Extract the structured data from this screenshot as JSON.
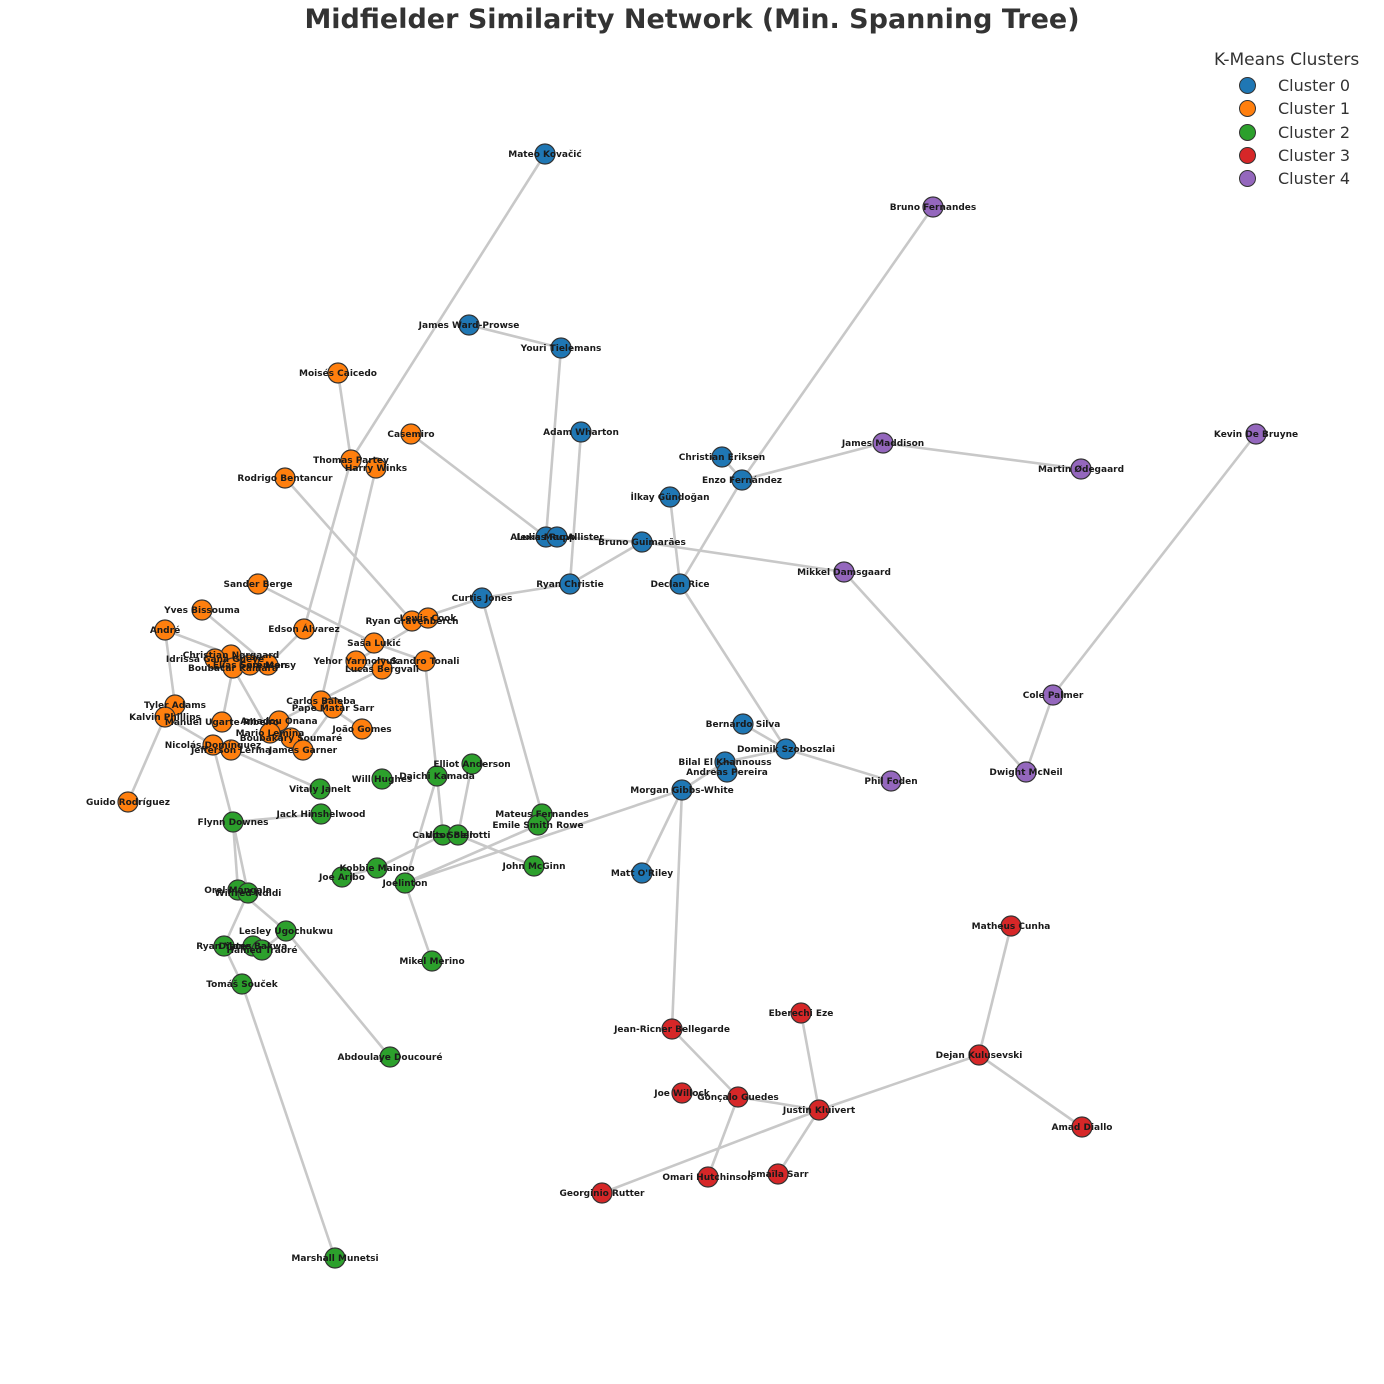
{
  "title": "Midfielder Similarity Network (Min. Spanning Tree)",
  "legend": {
    "title": "K-Means Clusters",
    "items": [
      {
        "label": "Cluster 0",
        "color": "#1f77b4"
      },
      {
        "label": "Cluster 1",
        "color": "#ff7f0e"
      },
      {
        "label": "Cluster 2",
        "color": "#2ca02c"
      },
      {
        "label": "Cluster 3",
        "color": "#d62728"
      },
      {
        "label": "Cluster 4",
        "color": "#9467bd"
      }
    ]
  },
  "colors": {
    "edge": "#c8c8c8",
    "node_outline": "#333333"
  },
  "nodes": [
    {
      "name": "Mateo Kovačić",
      "cluster": 0
    },
    {
      "name": "James Ward-Prowse",
      "cluster": 0
    },
    {
      "name": "Youri Tielemans",
      "cluster": 0
    },
    {
      "name": "Adam Wharton",
      "cluster": 0
    },
    {
      "name": "Christian Eriksen",
      "cluster": 0
    },
    {
      "name": "Enzo Fernández",
      "cluster": 0
    },
    {
      "name": "İlkay Gündoğan",
      "cluster": 0
    },
    {
      "name": "Lukas Rupp",
      "cluster": 0
    },
    {
      "name": "Alexis Mac Allister",
      "cluster": 0
    },
    {
      "name": "Bruno Guimarães",
      "cluster": 0
    },
    {
      "name": "Ryan Christie",
      "cluster": 0
    },
    {
      "name": "Declan Rice",
      "cluster": 0
    },
    {
      "name": "Curtis Jones",
      "cluster": 0
    },
    {
      "name": "Bernardo Silva",
      "cluster": 0
    },
    {
      "name": "Dominik Szoboszlai",
      "cluster": 0
    },
    {
      "name": "Bilal El Khannouss",
      "cluster": 0
    },
    {
      "name": "Andreas Pereira",
      "cluster": 0
    },
    {
      "name": "Morgan Gibbs-White",
      "cluster": 0
    },
    {
      "name": "Matt O'Riley",
      "cluster": 0
    },
    {
      "name": "Moisés Caicedo",
      "cluster": 1
    },
    {
      "name": "Casemiro",
      "cluster": 1
    },
    {
      "name": "Thomas Partey",
      "cluster": 1
    },
    {
      "name": "Harry Winks",
      "cluster": 1
    },
    {
      "name": "Rodrigo Bentancur",
      "cluster": 1
    },
    {
      "name": "Sander Berge",
      "cluster": 1
    },
    {
      "name": "Yves Bissouma",
      "cluster": 1
    },
    {
      "name": "André",
      "cluster": 1
    },
    {
      "name": "Edson Álvarez",
      "cluster": 1
    },
    {
      "name": "Ryan Gravenberch",
      "cluster": 1
    },
    {
      "name": "Lewis Cook",
      "cluster": 1
    },
    {
      "name": "Saša Lukić",
      "cluster": 1
    },
    {
      "name": "Christian Nørgaard",
      "cluster": 1
    },
    {
      "name": "Idrissa Gana Gueye",
      "cluster": 1
    },
    {
      "name": "Boubacar Kamara",
      "cluster": 1
    },
    {
      "name": "Elias Sørensen",
      "cluster": 1
    },
    {
      "name": "Sam Morsy",
      "cluster": 1
    },
    {
      "name": "Yehor Yarmolyuk",
      "cluster": 1
    },
    {
      "name": "Lucas Bergvall",
      "cluster": 1
    },
    {
      "name": "Sandro Tonali",
      "cluster": 1
    },
    {
      "name": "Tyler Adams",
      "cluster": 1
    },
    {
      "name": "Kalvin Phillips",
      "cluster": 1
    },
    {
      "name": "Carlos Baleba",
      "cluster": 1
    },
    {
      "name": "Pape Matar Sarr",
      "cluster": 1
    },
    {
      "name": "Manuel Ugarte Ribeiro",
      "cluster": 1
    },
    {
      "name": "Amadou Onana",
      "cluster": 1
    },
    {
      "name": "Mario Lemina",
      "cluster": 1
    },
    {
      "name": "Boubakary Soumaré",
      "cluster": 1
    },
    {
      "name": "João Gomes",
      "cluster": 1
    },
    {
      "name": "Nicolás Domínguez",
      "cluster": 1
    },
    {
      "name": "Jefferson Lerma",
      "cluster": 1
    },
    {
      "name": "James Garner",
      "cluster": 1
    },
    {
      "name": "Guido Rodríguez",
      "cluster": 1
    },
    {
      "name": "Elliot Anderson",
      "cluster": 2
    },
    {
      "name": "Will Hughes",
      "cluster": 2
    },
    {
      "name": "Daichi Kamada",
      "cluster": 2
    },
    {
      "name": "Vitaly Janelt",
      "cluster": 2
    },
    {
      "name": "Jack Hinshelwood",
      "cluster": 2
    },
    {
      "name": "Flynn Downes",
      "cluster": 2
    },
    {
      "name": "Mateus Fernandes",
      "cluster": 2
    },
    {
      "name": "Emile Smith Rowe",
      "cluster": 2
    },
    {
      "name": "Carlos Soler",
      "cluster": 2
    },
    {
      "name": "Vitor Bellotti",
      "cluster": 2
    },
    {
      "name": "Kobbie Mainoo",
      "cluster": 2
    },
    {
      "name": "John McGinn",
      "cluster": 2
    },
    {
      "name": "Joe Aribo",
      "cluster": 2
    },
    {
      "name": "Joelinton",
      "cluster": 2
    },
    {
      "name": "Orel Mangala",
      "cluster": 2
    },
    {
      "name": "Wilfred Ndidi",
      "cluster": 2
    },
    {
      "name": "Lesley Ugochukwu",
      "cluster": 2
    },
    {
      "name": "Ryan Yates",
      "cluster": 2
    },
    {
      "name": "Dilane Bakwa",
      "cluster": 2
    },
    {
      "name": "Hamed Traoré",
      "cluster": 2
    },
    {
      "name": "Mikel Merino",
      "cluster": 2
    },
    {
      "name": "Tomáš Souček",
      "cluster": 2
    },
    {
      "name": "Abdoulaye Doucouré",
      "cluster": 2
    },
    {
      "name": "Marshall Munetsi",
      "cluster": 2
    },
    {
      "name": "Matheus Cunha",
      "cluster": 3
    },
    {
      "name": "Eberechi Eze",
      "cluster": 3
    },
    {
      "name": "Jean-Ricner Bellegarde",
      "cluster": 3
    },
    {
      "name": "Dejan Kulusevski",
      "cluster": 3
    },
    {
      "name": "Joe Willock",
      "cluster": 3
    },
    {
      "name": "Gonçalo Guedes",
      "cluster": 3
    },
    {
      "name": "Justin Kluivert",
      "cluster": 3
    },
    {
      "name": "Amad Diallo",
      "cluster": 3
    },
    {
      "name": "Omari Hutchinson",
      "cluster": 3
    },
    {
      "name": "Ismaïla Sarr",
      "cluster": 3
    },
    {
      "name": "Georginio Rutter",
      "cluster": 3
    },
    {
      "name": "Bruno Fernandes",
      "cluster": 4
    },
    {
      "name": "James Maddison",
      "cluster": 4
    },
    {
      "name": "Martin Ødegaard",
      "cluster": 4
    },
    {
      "name": "Kevin De Bruyne",
      "cluster": 4
    },
    {
      "name": "Mikkel Damsgaard",
      "cluster": 4
    },
    {
      "name": "Cole Palmer",
      "cluster": 4
    },
    {
      "name": "Dwight McNeil",
      "cluster": 4
    },
    {
      "name": "Phil Foden",
      "cluster": 4
    }
  ],
  "edges": [
    [
      "Mateo Kovačić",
      "Thomas Partey"
    ],
    [
      "James Ward-Prowse",
      "Youri Tielemans"
    ],
    [
      "Youri Tielemans",
      "Lukas Rupp"
    ],
    [
      "Adam Wharton",
      "Ryan Christie"
    ],
    [
      "Alexis Mac Allister",
      "Bruno Guimarães"
    ],
    [
      "Bruno Guimarães",
      "Ryan Christie"
    ],
    [
      "Bruno Guimarães",
      "Mikkel Damsgaard"
    ],
    [
      "Ryan Christie",
      "Curtis Jones"
    ],
    [
      "Curtis Jones",
      "Ryan Gravenberch"
    ],
    [
      "Curtis Jones",
      "Mateus Fernandes"
    ],
    [
      "Christian Eriksen",
      "Enzo Fernández"
    ],
    [
      "Enzo Fernández",
      "Bruno Fernandes"
    ],
    [
      "Enzo Fernández",
      "James Maddison"
    ],
    [
      "Enzo Fernández",
      "Declan Rice"
    ],
    [
      "İlkay Gündoğan",
      "Declan Rice"
    ],
    [
      "Declan Rice",
      "Dominik Szoboszlai"
    ],
    [
      "James Maddison",
      "Martin Ødegaard"
    ],
    [
      "Kevin De Bruyne",
      "Cole Palmer"
    ],
    [
      "Cole Palmer",
      "Dwight McNeil"
    ],
    [
      "Mikkel Damsgaard",
      "Dwight McNeil"
    ],
    [
      "Dominik Szoboszlai",
      "Phil Foden"
    ],
    [
      "Dominik Szoboszlai",
      "Bilal El Khannouss"
    ],
    [
      "Bernardo Silva",
      "Dominik Szoboszlai"
    ],
    [
      "Bilal El Khannouss",
      "Morgan Gibbs-White"
    ],
    [
      "Morgan Gibbs-White",
      "Matt O'Riley"
    ],
    [
      "Morgan Gibbs-White",
      "Joelinton"
    ],
    [
      "Morgan Gibbs-White",
      "Jean-Ricner Bellegarde"
    ],
    [
      "Jean-Ricner Bellegarde",
      "Gonçalo Guedes"
    ],
    [
      "Gonçalo Guedes",
      "Justin Kluivert"
    ],
    [
      "Gonçalo Guedes",
      "Omari Hutchinson"
    ],
    [
      "Justin Kluivert",
      "Eberechi Eze"
    ],
    [
      "Justin Kluivert",
      "Ismaïla Sarr"
    ],
    [
      "Justin Kluivert",
      "Georginio Rutter"
    ],
    [
      "Justin Kluivert",
      "Dejan Kulusevski"
    ],
    [
      "Dejan Kulusevski",
      "Matheus Cunha"
    ],
    [
      "Dejan Kulusevski",
      "Amad Diallo"
    ],
    [
      "Moisés Caicedo",
      "Thomas Partey"
    ],
    [
      "Thomas Partey",
      "Edson Álvarez"
    ],
    [
      "Harry Winks",
      "Carlos Baleba"
    ],
    [
      "Casemiro",
      "Lukas Rupp"
    ],
    [
      "Rodrigo Bentancur",
      "Ryan Gravenberch"
    ],
    [
      "Sander Berge",
      "Saša Lukić"
    ],
    [
      "Ryan Gravenberch",
      "Lewis Cook"
    ],
    [
      "Lewis Cook",
      "Yehor Yarmolyuk"
    ],
    [
      "Saša Lukić",
      "Sandro Tonali"
    ],
    [
      "Sandro Tonali",
      "Daichi Kamada"
    ],
    [
      "Yehor Yarmolyuk",
      "Lucas Bergvall"
    ],
    [
      "Lucas Bergvall",
      "Amadou Onana"
    ],
    [
      "Edson Álvarez",
      "Sam Morsy"
    ],
    [
      "Yves Bissouma",
      "Sam Morsy"
    ],
    [
      "André",
      "Christian Nørgaard"
    ],
    [
      "André",
      "Tyler Adams"
    ],
    [
      "Christian Nørgaard",
      "Idrissa Gana Gueye"
    ],
    [
      "Idrissa Gana Gueye",
      "Boubacar Kamara"
    ],
    [
      "Boubacar Kamara",
      "Manuel Ugarte Ribeiro"
    ],
    [
      "Boubacar Kamara",
      "Mario Lemina"
    ],
    [
      "Tyler Adams",
      "Kalvin Phillips"
    ],
    [
      "Kalvin Phillips",
      "Nicolás Domínguez"
    ],
    [
      "Kalvin Phillips",
      "Guido Rodríguez"
    ],
    [
      "Nicolás Domínguez",
      "Jefferson Lerma"
    ],
    [
      "Nicolás Domínguez",
      "Flynn Downes"
    ],
    [
      "Jefferson Lerma",
      "Vitaly Janelt"
    ],
    [
      "Carlos Baleba",
      "Pape Matar Sarr"
    ],
    [
      "Carlos Baleba",
      "João Gomes"
    ],
    [
      "Pape Matar Sarr",
      "James Garner"
    ],
    [
      "Amadou Onana",
      "Boubakary Soumaré"
    ],
    [
      "Flynn Downes",
      "Jack Hinshelwood"
    ],
    [
      "Flynn Downes",
      "Orel Mangala"
    ],
    [
      "Flynn Downes",
      "Wilfred Ndidi"
    ],
    [
      "Wilfred Ndidi",
      "Ryan Yates"
    ],
    [
      "Orel Mangala",
      "Lesley Ugochukwu"
    ],
    [
      "Lesley Ugochukwu",
      "Hamed Traoré"
    ],
    [
      "Lesley Ugochukwu",
      "Abdoulaye Doucouré"
    ],
    [
      "Ryan Yates",
      "Tomáš Souček"
    ],
    [
      "Tomáš Souček",
      "Marshall Munetsi"
    ],
    [
      "Elliot Anderson",
      "Vitor Bellotti"
    ],
    [
      "Daichi Kamada",
      "Carlos Soler"
    ],
    [
      "Daichi Kamada",
      "Joelinton"
    ],
    [
      "Carlos Soler",
      "Kobbie Mainoo"
    ],
    [
      "Vitor Bellotti",
      "John McGinn"
    ],
    [
      "Kobbie Mainoo",
      "Joe Aribo"
    ],
    [
      "Joelinton",
      "Mikel Merino"
    ],
    [
      "Joelinton",
      "Emile Smith Rowe"
    ]
  ]
}
